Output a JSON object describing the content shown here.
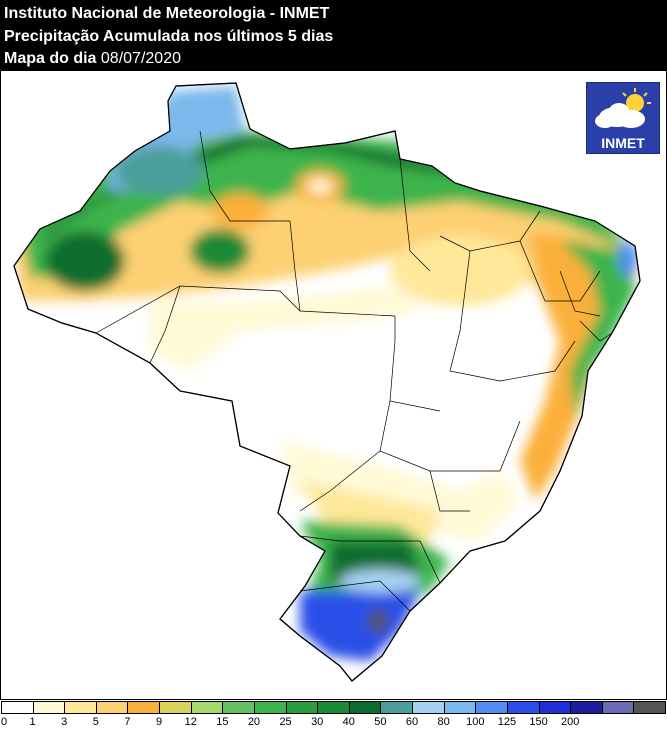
{
  "header": {
    "line1": "Instituto Nacional de Meteorologia - INMET",
    "line2": "Precipitação Acumulada nos últimos 5 dias",
    "line3_label": "Mapa do dia ",
    "line3_date": "08/07/2020"
  },
  "logo": {
    "text": "INMET",
    "icon": "cloud-sun-icon"
  },
  "legend": {
    "colors": [
      "#ffffff",
      "#fff9d6",
      "#ffe89a",
      "#fdd072",
      "#fbb03b",
      "#d6d25a",
      "#a6d96a",
      "#66c164",
      "#3cb44b",
      "#2a9d3e",
      "#1a8a34",
      "#0b6e2e",
      "#4c9e9a",
      "#a6d2f2",
      "#7bb8ec",
      "#4f8ef0",
      "#2c4fe8",
      "#1f2fd6",
      "#1d1d9c",
      "#6b6bb5",
      "#555555"
    ],
    "ticks": [
      "0",
      "1",
      "3",
      "5",
      "7",
      "9",
      "12",
      "15",
      "20",
      "25",
      "30",
      "40",
      "50",
      "60",
      "80",
      "100",
      "125",
      "150",
      "200"
    ]
  }
}
